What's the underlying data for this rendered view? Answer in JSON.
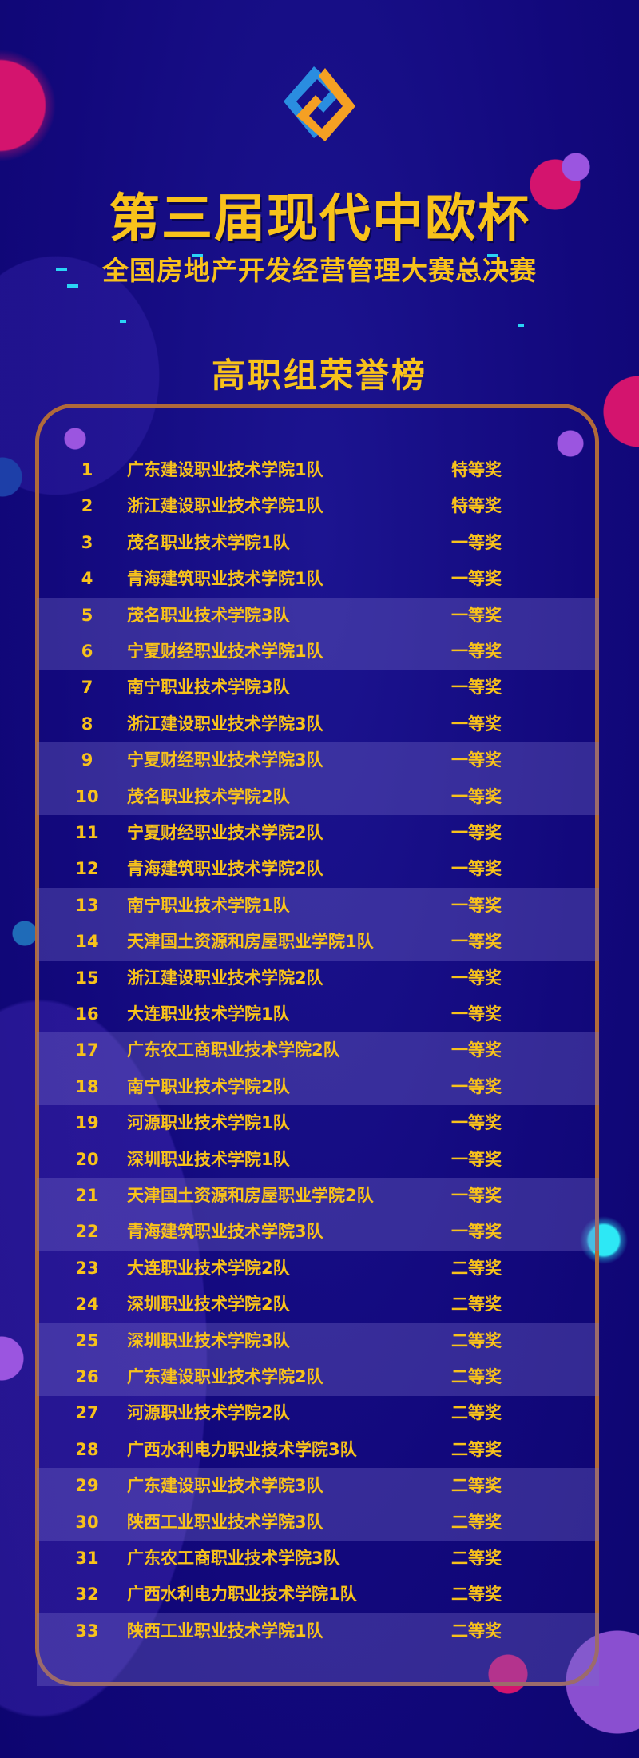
{
  "title": "第三届现代中欧杯",
  "subtitle": "全国房地产开发经营管理大赛总决赛",
  "heading": "高职组荣誉榜",
  "colors": {
    "background": "#13077f",
    "text": "#f8c21b",
    "frame": "#b06a3a",
    "logo_blue": "#2a8de0",
    "logo_orange": "#f5a023"
  },
  "logo_icon": "interlocking-diamond-logo",
  "results": [
    {
      "rank": "1",
      "team": "广东建设职业技术学院1队",
      "award": "特等奖"
    },
    {
      "rank": "2",
      "team": "浙江建设职业技术学院1队",
      "award": "特等奖"
    },
    {
      "rank": "3",
      "team": "茂名职业技术学院1队",
      "award": "一等奖"
    },
    {
      "rank": "4",
      "team": "青海建筑职业技术学院1队",
      "award": "一等奖"
    },
    {
      "rank": "5",
      "team": "茂名职业技术学院3队",
      "award": "一等奖"
    },
    {
      "rank": "6",
      "team": "宁夏财经职业技术学院1队",
      "award": "一等奖"
    },
    {
      "rank": "7",
      "team": "南宁职业技术学院3队",
      "award": "一等奖"
    },
    {
      "rank": "8",
      "team": "浙江建设职业技术学院3队",
      "award": "一等奖"
    },
    {
      "rank": "9",
      "team": "宁夏财经职业技术学院3队",
      "award": "一等奖"
    },
    {
      "rank": "10",
      "team": "茂名职业技术学院2队",
      "award": "一等奖"
    },
    {
      "rank": "11",
      "team": "宁夏财经职业技术学院2队",
      "award": "一等奖"
    },
    {
      "rank": "12",
      "team": "青海建筑职业技术学院2队",
      "award": "一等奖"
    },
    {
      "rank": "13",
      "team": "南宁职业技术学院1队",
      "award": "一等奖"
    },
    {
      "rank": "14",
      "team": "天津国土资源和房屋职业学院1队",
      "award": "一等奖"
    },
    {
      "rank": "15",
      "team": "浙江建设职业技术学院2队",
      "award": "一等奖"
    },
    {
      "rank": "16",
      "team": "大连职业技术学院1队",
      "award": "一等奖"
    },
    {
      "rank": "17",
      "team": "广东农工商职业技术学院2队",
      "award": "一等奖"
    },
    {
      "rank": "18",
      "team": "南宁职业技术学院2队",
      "award": "一等奖"
    },
    {
      "rank": "19",
      "team": "河源职业技术学院1队",
      "award": "一等奖"
    },
    {
      "rank": "20",
      "team": "深圳职业技术学院1队",
      "award": "一等奖"
    },
    {
      "rank": "21",
      "team": "天津国土资源和房屋职业学院2队",
      "award": "一等奖"
    },
    {
      "rank": "22",
      "team": "青海建筑职业技术学院3队",
      "award": "一等奖"
    },
    {
      "rank": "23",
      "team": "大连职业技术学院2队",
      "award": "二等奖"
    },
    {
      "rank": "24",
      "team": "深圳职业技术学院2队",
      "award": "二等奖"
    },
    {
      "rank": "25",
      "team": "深圳职业技术学院3队",
      "award": "二等奖"
    },
    {
      "rank": "26",
      "team": "广东建设职业技术学院2队",
      "award": "二等奖"
    },
    {
      "rank": "27",
      "team": "河源职业技术学院2队",
      "award": "二等奖"
    },
    {
      "rank": "28",
      "team": "广西水利电力职业技术学院3队",
      "award": "二等奖"
    },
    {
      "rank": "29",
      "team": "广东建设职业技术学院3队",
      "award": "二等奖"
    },
    {
      "rank": "30",
      "team": "陕西工业职业技术学院3队",
      "award": "二等奖"
    },
    {
      "rank": "31",
      "team": "广东农工商职业技术学院3队",
      "award": "二等奖"
    },
    {
      "rank": "32",
      "team": "广西水利电力职业技术学院1队",
      "award": "二等奖"
    },
    {
      "rank": "33",
      "team": "陕西工业职业技术学院1队",
      "award": "二等奖"
    }
  ]
}
